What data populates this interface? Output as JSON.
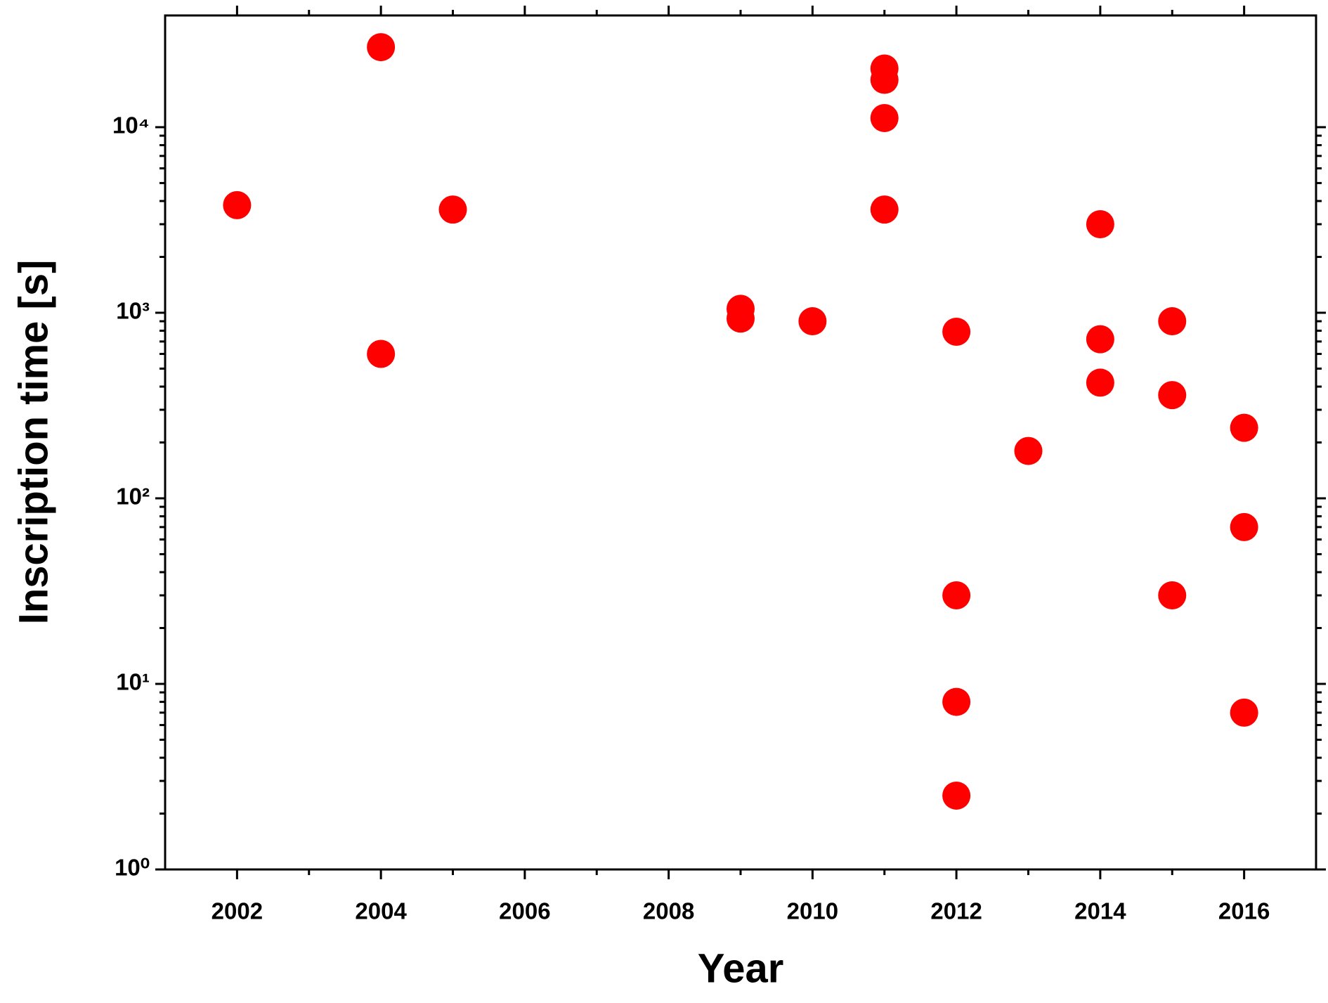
{
  "chart_data": {
    "type": "scatter",
    "x_label": "Year",
    "y_label": "Inscription time [s]",
    "x": [
      2002,
      2004,
      2004,
      2005,
      2009,
      2009,
      2010,
      2011,
      2011,
      2011,
      2011,
      2012,
      2012,
      2012,
      2012,
      2013,
      2014,
      2014,
      2014,
      2015,
      2015,
      2015,
      2016,
      2016,
      2016
    ],
    "values": [
      3800,
      27000,
      600,
      3600,
      1050,
      930,
      900,
      20700,
      18000,
      11200,
      3600,
      790,
      30,
      8,
      2.5,
      180,
      3000,
      720,
      420,
      900,
      360,
      30,
      240,
      70,
      7
    ],
    "color": "#ff0000",
    "xlim": [
      2001,
      2017
    ],
    "xticks": [
      2002,
      2004,
      2006,
      2008,
      2010,
      2012,
      2014,
      2016
    ],
    "ylim": [
      1,
      40000
    ],
    "y_log": true,
    "yticks": [
      {
        "value": 1,
        "label": "10⁰"
      },
      {
        "value": 10,
        "label": "10¹"
      },
      {
        "value": 100,
        "label": "10²"
      },
      {
        "value": 1000,
        "label": "10³"
      },
      {
        "value": 10000,
        "label": "10⁴"
      }
    ],
    "grid": false
  }
}
